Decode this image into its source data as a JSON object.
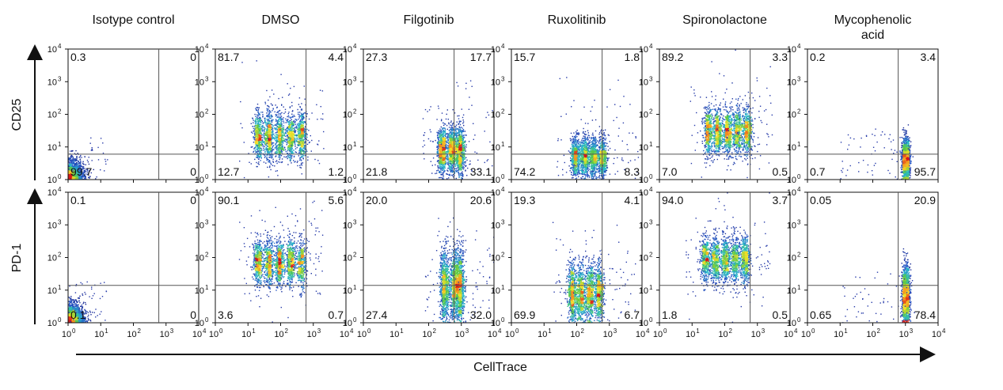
{
  "figure": {
    "y_axis_label_top": "CD25",
    "y_axis_label_bottom": "PD-1",
    "x_axis_label": "CellTrace",
    "x_ticks": [
      {
        "base": "10",
        "exp": "0"
      },
      {
        "base": "10",
        "exp": "1"
      },
      {
        "base": "10",
        "exp": "2"
      },
      {
        "base": "10",
        "exp": "3"
      },
      {
        "base": "10",
        "exp": "4"
      }
    ],
    "y_ticks": [
      {
        "base": "10",
        "exp": "0"
      },
      {
        "base": "10",
        "exp": "1"
      },
      {
        "base": "10",
        "exp": "2"
      },
      {
        "base": "10",
        "exp": "3"
      },
      {
        "base": "10",
        "exp": "4"
      }
    ]
  },
  "columns": [
    {
      "title": [
        "Isotype control"
      ]
    },
    {
      "title": [
        "DMSO"
      ]
    },
    {
      "title": [
        "Filgotinib"
      ]
    },
    {
      "title": [
        "Ruxolitinib"
      ]
    },
    {
      "title": [
        "Spironolactone"
      ]
    },
    {
      "title": [
        "Mycophenolic",
        "acid"
      ]
    }
  ],
  "chart_data": {
    "type": "scatter",
    "scale": "log",
    "xlim": [
      1,
      10000
    ],
    "ylim": [
      1,
      10000
    ],
    "xlabel": "CellTrace",
    "rows": [
      "CD25",
      "PD-1"
    ],
    "panels": [
      [
        {
          "quadrants": {
            "ul": "0.3",
            "ur": "0",
            "ll": "99.7",
            "lr": "0"
          },
          "gate": {
            "x": 600,
            "y": 6
          },
          "pop": {
            "type": "iso",
            "cx": 2.5,
            "cy": 3
          }
        },
        {
          "quadrants": {
            "ul": "81.7",
            "ur": "4.4",
            "ll": "12.7",
            "lr": "1.2"
          },
          "gate": {
            "x": 600,
            "y": 6
          },
          "pop": {
            "type": "peaks",
            "peaks": [
              20,
              42,
              90,
              200,
              420
            ],
            "cy": 22,
            "spread": 0.35
          }
        },
        {
          "quadrants": {
            "ul": "27.3",
            "ur": "17.7",
            "ll": "21.8",
            "lr": "33.1"
          },
          "gate": {
            "x": 600,
            "y": 6
          },
          "pop": {
            "type": "peaks",
            "peaks": [
              250,
              500,
              900
            ],
            "cy": 8,
            "spread": 0.35
          }
        },
        {
          "quadrants": {
            "ul": "15.7",
            "ur": "1.8",
            "ll": "74.2",
            "lr": "8.3"
          },
          "gate": {
            "x": 600,
            "y": 6
          },
          "pop": {
            "type": "peaks",
            "peaks": [
              90,
              170,
              320,
              600
            ],
            "cy": 5,
            "spread": 0.3
          }
        },
        {
          "quadrants": {
            "ul": "89.2",
            "ur": "3.3",
            "ll": "7.0",
            "lr": "0.5"
          },
          "gate": {
            "x": 600,
            "y": 6
          },
          "pop": {
            "type": "peaks",
            "peaks": [
              30,
              60,
              120,
              240,
              480
            ],
            "cy": 30,
            "spread": 0.35
          }
        },
        {
          "quadrants": {
            "ul": "0.2",
            "ur": "3.4",
            "ll": "0.7",
            "lr": "95.7"
          },
          "gate": {
            "x": 600,
            "y": 6
          },
          "pop": {
            "type": "single",
            "cx": 1000,
            "cy": 4,
            "sx": 0.06,
            "sy": 0.3
          }
        }
      ],
      [
        {
          "quadrants": {
            "ul": "0.1",
            "ur": "0",
            "ll": "0.1",
            "lr": "0"
          },
          "gate": {
            "x": 600,
            "y": 14
          },
          "pop": {
            "type": "iso",
            "cx": 2.5,
            "cy": 3
          }
        },
        {
          "quadrants": {
            "ul": "90.1",
            "ur": "5.6",
            "ll": "3.6",
            "lr": "0.7"
          },
          "gate": {
            "x": 600,
            "y": 14
          },
          "pop": {
            "type": "peaks",
            "peaks": [
              20,
              42,
              90,
              200,
              420
            ],
            "cy": 70,
            "spread": 0.35
          }
        },
        {
          "quadrants": {
            "ul": "20.0",
            "ur": "20.6",
            "ll": "27.4",
            "lr": "32.0"
          },
          "gate": {
            "x": 600,
            "y": 14
          },
          "pop": {
            "type": "peaks",
            "peaks": [
              300,
              600,
              900
            ],
            "cy": 14,
            "spread": 0.55
          }
        },
        {
          "quadrants": {
            "ul": "19.3",
            "ur": "4.1",
            "ll": "69.9",
            "lr": "6.7"
          },
          "gate": {
            "x": 600,
            "y": 14
          },
          "pop": {
            "type": "peaks",
            "peaks": [
              70,
              130,
              250,
              480
            ],
            "cy": 8,
            "spread": 0.45
          }
        },
        {
          "quadrants": {
            "ul": "94.0",
            "ur": "3.7",
            "ll": "1.8",
            "lr": "0.5"
          },
          "gate": {
            "x": 600,
            "y": 14
          },
          "pop": {
            "type": "peaks",
            "peaks": [
              25,
              50,
              100,
              200,
              400
            ],
            "cy": 90,
            "spread": 0.35
          }
        },
        {
          "quadrants": {
            "ul": "0.05",
            "ur": "20.9",
            "ll": "0.65",
            "lr": "78.4"
          },
          "gate": {
            "x": 600,
            "y": 14
          },
          "pop": {
            "type": "single",
            "cx": 1000,
            "cy": 6,
            "sx": 0.06,
            "sy": 0.45
          }
        }
      ]
    ]
  }
}
